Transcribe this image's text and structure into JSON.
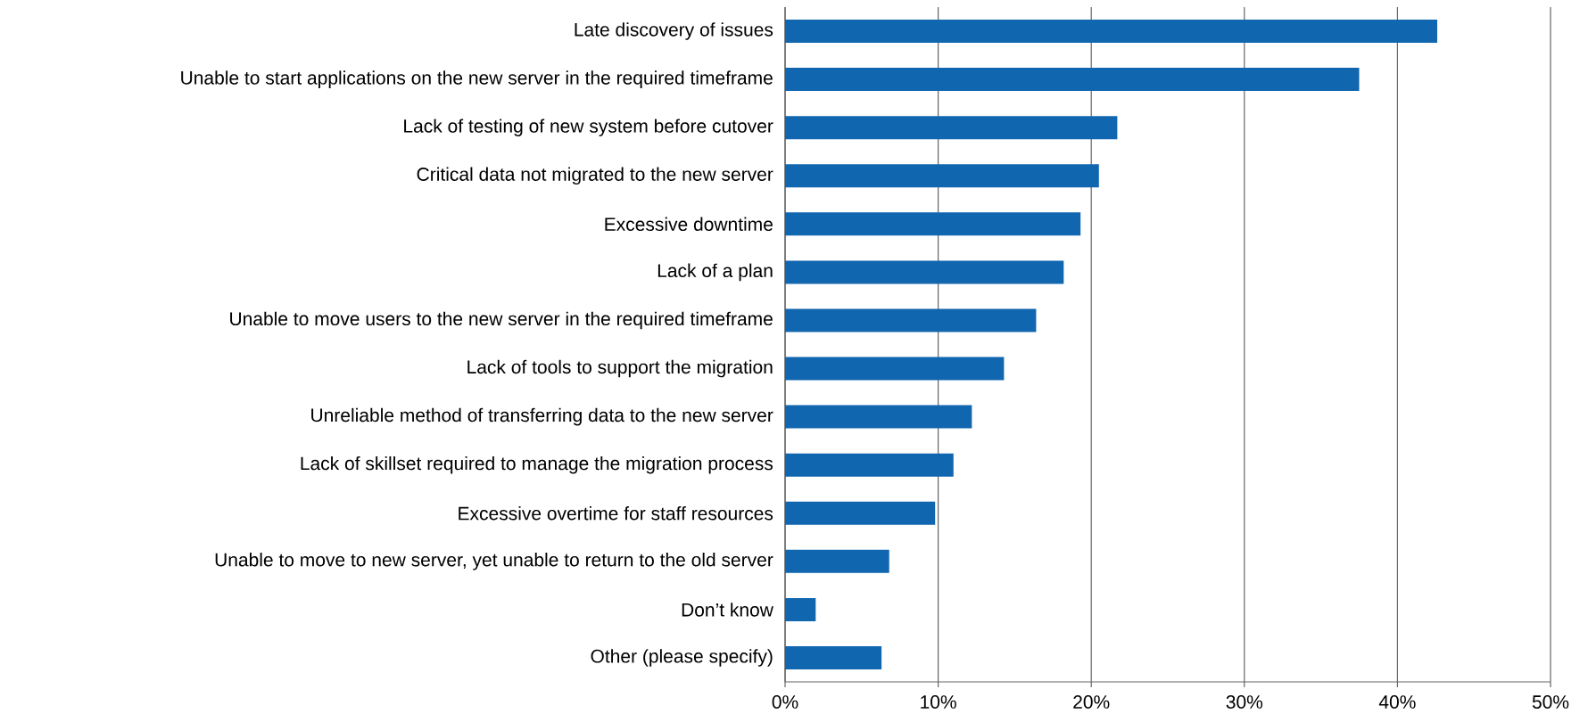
{
  "chart_data": {
    "type": "bar",
    "orientation": "horizontal",
    "categories": [
      "Late discovery of issues",
      "Unable to start applications on the new server in the required timeframe",
      "Lack of testing of new system before cutover",
      "Critical data not migrated to the new server",
      "Excessive downtime",
      "Lack of a plan",
      "Unable to move users to the new server in the required timeframe",
      "Lack of tools to support the migration",
      "Unreliable method of transferring data to the new server",
      "Lack of skillset required to manage the migration process",
      "Excessive overtime for staff resources",
      "Unable to move to new server, yet unable to return to the old server",
      "Don’t know",
      "Other (please specify)"
    ],
    "values": [
      42.6,
      37.5,
      21.7,
      20.5,
      19.3,
      18.2,
      16.4,
      14.3,
      12.2,
      11.0,
      9.8,
      6.8,
      2.0,
      6.3
    ],
    "color": "#1166b0",
    "xlim": [
      0,
      50
    ],
    "xticks": [
      {
        "value": 0,
        "label": "0%"
      },
      {
        "value": 10,
        "label": "10%"
      },
      {
        "value": 20,
        "label": "20%"
      },
      {
        "value": 30,
        "label": "30%"
      },
      {
        "value": 40,
        "label": "40%"
      },
      {
        "value": 50,
        "label": "50%"
      }
    ],
    "grid": "x"
  }
}
